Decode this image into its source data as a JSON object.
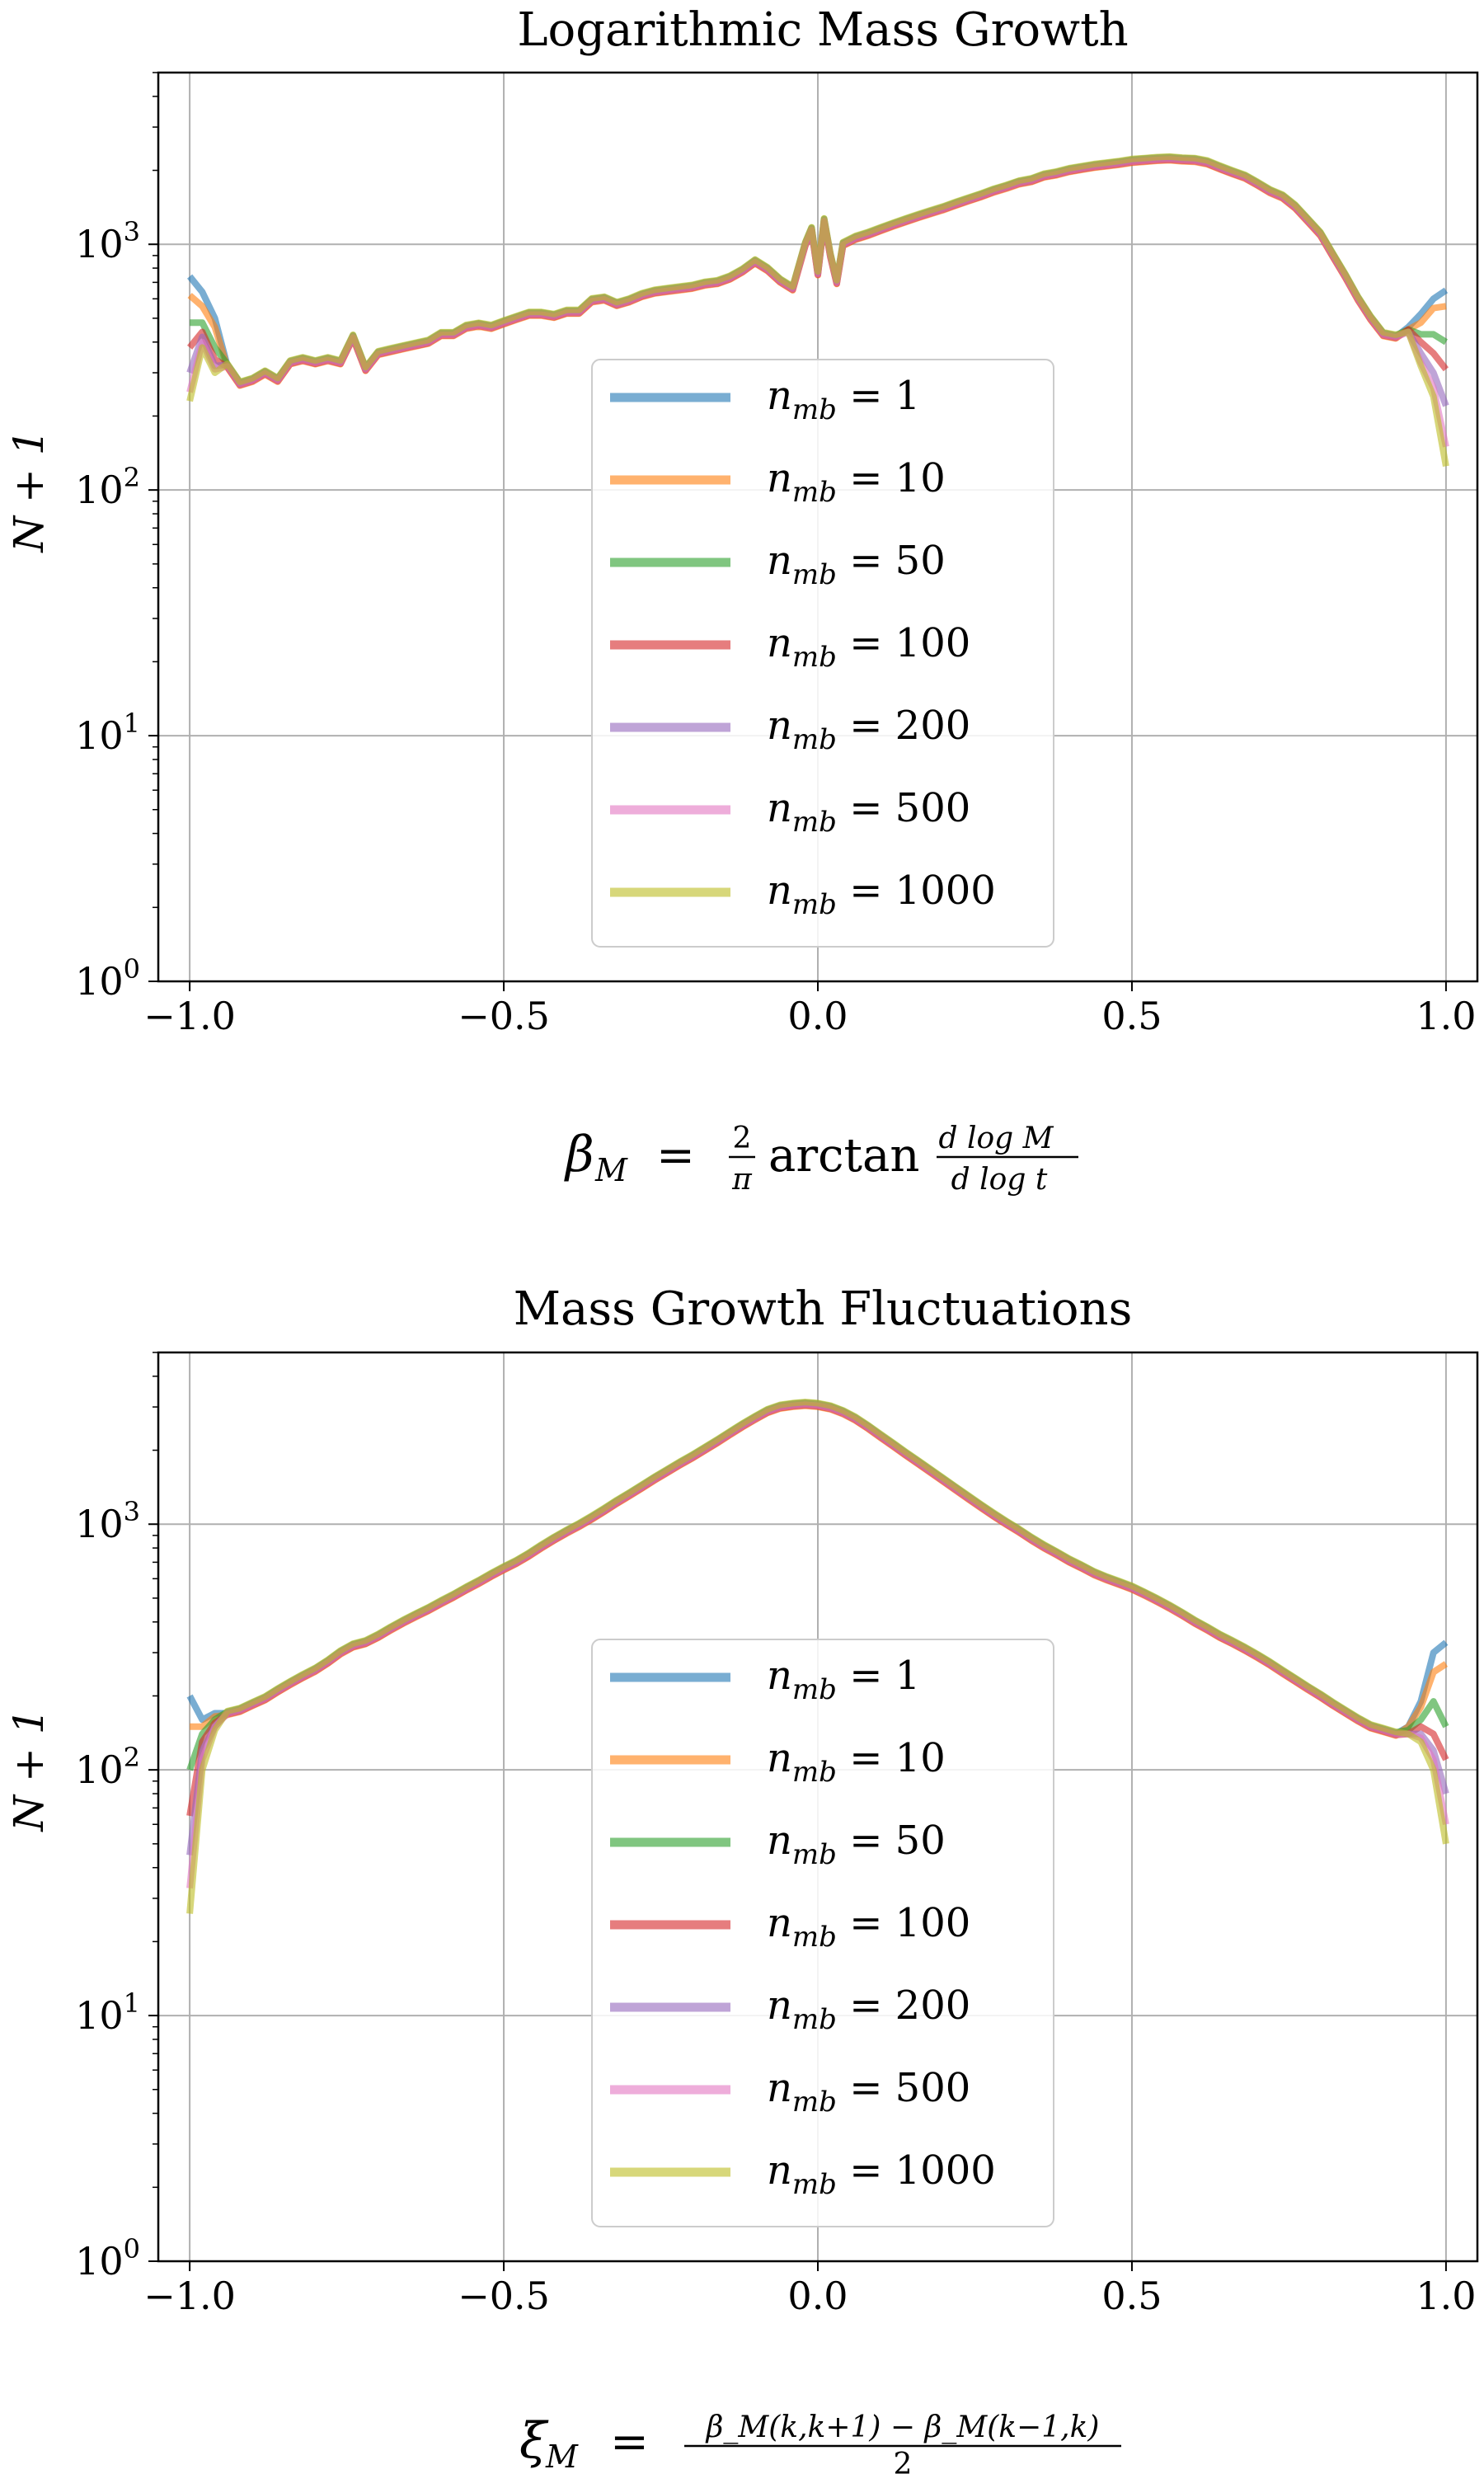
{
  "chart_data": [
    {
      "type": "line",
      "title": "Logarithmic Mass Growth",
      "ylabel": "N + 1",
      "xlabel_parts": {
        "lhs": "β",
        "sub": "M",
        "eq": "=",
        "frac_num": "2",
        "frac_den": "π",
        "fn": "arctan",
        "deriv_num": "d log M",
        "deriv_den": "d log t"
      },
      "y_scale": "log",
      "xlim": [
        -1.05,
        1.05
      ],
      "ylim": [
        1,
        5000
      ],
      "xticks": [
        "−1.0",
        "−0.5",
        "0.0",
        "0.5",
        "1.0"
      ],
      "xtick_values": [
        -1.0,
        -0.5,
        0.0,
        0.5,
        1.0
      ],
      "yticks": [
        {
          "base": "10",
          "exp": "0",
          "value": 1
        },
        {
          "base": "10",
          "exp": "1",
          "value": 10
        },
        {
          "base": "10",
          "exp": "2",
          "value": 100
        },
        {
          "base": "10",
          "exp": "3",
          "value": 1000
        }
      ],
      "grid": true,
      "legend_position": "center-bottom",
      "base_curve": {
        "x": [
          -1.0,
          -0.98,
          -0.96,
          -0.94,
          -0.92,
          -0.9,
          -0.88,
          -0.86,
          -0.84,
          -0.82,
          -0.8,
          -0.78,
          -0.76,
          -0.74,
          -0.72,
          -0.7,
          -0.68,
          -0.66,
          -0.64,
          -0.62,
          -0.6,
          -0.58,
          -0.56,
          -0.54,
          -0.52,
          -0.5,
          -0.48,
          -0.46,
          -0.44,
          -0.42,
          -0.4,
          -0.38,
          -0.36,
          -0.34,
          -0.32,
          -0.3,
          -0.28,
          -0.26,
          -0.24,
          -0.22,
          -0.2,
          -0.18,
          -0.16,
          -0.14,
          -0.12,
          -0.1,
          -0.08,
          -0.06,
          -0.04,
          -0.02,
          -0.01,
          0.0,
          0.01,
          0.02,
          0.03,
          0.04,
          0.06,
          0.08,
          0.1,
          0.12,
          0.14,
          0.16,
          0.18,
          0.2,
          0.22,
          0.24,
          0.26,
          0.28,
          0.3,
          0.32,
          0.34,
          0.36,
          0.38,
          0.4,
          0.42,
          0.44,
          0.46,
          0.48,
          0.5,
          0.52,
          0.54,
          0.56,
          0.58,
          0.6,
          0.62,
          0.64,
          0.66,
          0.68,
          0.7,
          0.72,
          0.74,
          0.76,
          0.78,
          0.8,
          0.82,
          0.84,
          0.86,
          0.88,
          0.9,
          0.92,
          0.94,
          0.96,
          0.98,
          1.0
        ],
        "y": [
          480,
          460,
          360,
          320,
          270,
          280,
          300,
          280,
          330,
          340,
          330,
          340,
          330,
          420,
          310,
          360,
          370,
          380,
          390,
          400,
          430,
          430,
          460,
          470,
          460,
          480,
          500,
          520,
          520,
          510,
          530,
          530,
          590,
          600,
          570,
          590,
          620,
          640,
          650,
          660,
          670,
          690,
          700,
          730,
          780,
          850,
          790,
          710,
          660,
          1000,
          1150,
          760,
          1250,
          900,
          700,
          1000,
          1060,
          1100,
          1150,
          1200,
          1250,
          1300,
          1350,
          1400,
          1460,
          1520,
          1580,
          1650,
          1710,
          1780,
          1820,
          1900,
          1940,
          2000,
          2040,
          2080,
          2110,
          2140,
          2180,
          2200,
          2220,
          2230,
          2210,
          2200,
          2150,
          2050,
          1960,
          1880,
          1760,
          1640,
          1560,
          1420,
          1250,
          1100,
          900,
          740,
          600,
          500,
          430,
          420,
          430,
          420,
          410,
          400
        ]
      },
      "series": [
        {
          "name": "n_mb = 1",
          "label_num": "1",
          "color": "#1f77b4",
          "left_end": [
            740,
            640,
            500
          ],
          "right_end": [
            460,
            520,
            600,
            650
          ]
        },
        {
          "name": "n_mb = 10",
          "label_num": "10",
          "color": "#ff7f0e",
          "left_end": [
            620,
            560,
            460
          ],
          "right_end": [
            450,
            480,
            550,
            560
          ]
        },
        {
          "name": "n_mb = 50",
          "label_num": "50",
          "color": "#2ca02c",
          "left_end": [
            480,
            480,
            380
          ],
          "right_end": [
            450,
            430,
            430,
            400
          ]
        },
        {
          "name": "n_mb = 100",
          "label_num": "100",
          "color": "#d62728",
          "left_end": [
            380,
            440,
            340
          ],
          "right_end": [
            450,
            400,
            360,
            310
          ]
        },
        {
          "name": "n_mb = 200",
          "label_num": "200",
          "color": "#9467bd",
          "left_end": [
            300,
            420,
            320
          ],
          "right_end": [
            440,
            360,
            300,
            220
          ]
        },
        {
          "name": "n_mb = 500",
          "label_num": "500",
          "color": "#e377c2",
          "left_end": [
            250,
            400,
            310
          ],
          "right_end": [
            440,
            330,
            260,
            150
          ]
        },
        {
          "name": "n_mb = 1000",
          "label_num": "1000",
          "color": "#bcbd22",
          "left_end": [
            230,
            380,
            300
          ],
          "right_end": [
            440,
            320,
            240,
            125
          ]
        }
      ]
    },
    {
      "type": "line",
      "title": "Mass Growth Fluctuations",
      "ylabel": "N + 1",
      "xlabel_parts": {
        "lhs": "ξ",
        "sub": "M",
        "eq": "=",
        "frac_num": "β_M(k,k+1) − β_M(k−1,k)",
        "frac_den": "2"
      },
      "y_scale": "log",
      "xlim": [
        -1.05,
        1.05
      ],
      "ylim": [
        1,
        5000
      ],
      "xticks": [
        "−1.0",
        "−0.5",
        "0.0",
        "0.5",
        "1.0"
      ],
      "xtick_values": [
        -1.0,
        -0.5,
        0.0,
        0.5,
        1.0
      ],
      "yticks": [
        {
          "base": "10",
          "exp": "0",
          "value": 1
        },
        {
          "base": "10",
          "exp": "1",
          "value": 10
        },
        {
          "base": "10",
          "exp": "2",
          "value": 100
        },
        {
          "base": "10",
          "exp": "3",
          "value": 1000
        }
      ],
      "grid": true,
      "legend_position": "center-bottom",
      "base_curve": {
        "x": [
          -1.0,
          -0.98,
          -0.96,
          -0.94,
          -0.92,
          -0.9,
          -0.88,
          -0.86,
          -0.84,
          -0.82,
          -0.8,
          -0.78,
          -0.76,
          -0.74,
          -0.72,
          -0.7,
          -0.68,
          -0.66,
          -0.64,
          -0.62,
          -0.6,
          -0.58,
          -0.56,
          -0.54,
          -0.52,
          -0.5,
          -0.48,
          -0.46,
          -0.44,
          -0.42,
          -0.4,
          -0.38,
          -0.36,
          -0.34,
          -0.32,
          -0.3,
          -0.28,
          -0.26,
          -0.24,
          -0.22,
          -0.2,
          -0.18,
          -0.16,
          -0.14,
          -0.12,
          -0.1,
          -0.08,
          -0.06,
          -0.04,
          -0.02,
          0.0,
          0.02,
          0.04,
          0.06,
          0.08,
          0.1,
          0.12,
          0.14,
          0.16,
          0.18,
          0.2,
          0.22,
          0.24,
          0.26,
          0.28,
          0.3,
          0.32,
          0.34,
          0.36,
          0.38,
          0.4,
          0.42,
          0.44,
          0.46,
          0.48,
          0.5,
          0.52,
          0.54,
          0.56,
          0.58,
          0.6,
          0.62,
          0.64,
          0.66,
          0.68,
          0.7,
          0.72,
          0.74,
          0.76,
          0.78,
          0.8,
          0.82,
          0.84,
          0.86,
          0.88,
          0.9,
          0.92,
          0.94,
          0.96,
          0.98,
          1.0
        ],
        "y": [
          110,
          140,
          160,
          170,
          175,
          185,
          195,
          210,
          225,
          240,
          255,
          275,
          300,
          320,
          330,
          350,
          375,
          400,
          425,
          450,
          480,
          510,
          545,
          580,
          620,
          660,
          700,
          750,
          810,
          870,
          930,
          990,
          1060,
          1140,
          1230,
          1320,
          1420,
          1530,
          1640,
          1760,
          1880,
          2020,
          2170,
          2340,
          2520,
          2700,
          2880,
          3000,
          3050,
          3080,
          3050,
          2980,
          2850,
          2680,
          2480,
          2280,
          2100,
          1930,
          1780,
          1640,
          1510,
          1390,
          1280,
          1180,
          1090,
          1010,
          940,
          870,
          810,
          760,
          710,
          670,
          630,
          600,
          575,
          550,
          520,
          490,
          460,
          430,
          400,
          375,
          350,
          330,
          310,
          290,
          270,
          250,
          232,
          215,
          200,
          185,
          172,
          160,
          150,
          145,
          140,
          140,
          142,
          145,
          148
        ]
      },
      "series": [
        {
          "name": "n_mb = 1",
          "label_num": "1",
          "color": "#1f77b4",
          "left_end": [
            200,
            160,
            170
          ],
          "right_end": [
            150,
            190,
            300,
            330
          ]
        },
        {
          "name": "n_mb = 10",
          "label_num": "10",
          "color": "#ff7f0e",
          "left_end": [
            150,
            150,
            165
          ],
          "right_end": [
            150,
            180,
            250,
            270
          ]
        },
        {
          "name": "n_mb = 50",
          "label_num": "50",
          "color": "#2ca02c",
          "left_end": [
            100,
            140,
            160
          ],
          "right_end": [
            145,
            160,
            190,
            150
          ]
        },
        {
          "name": "n_mb = 100",
          "label_num": "100",
          "color": "#d62728",
          "left_end": [
            65,
            130,
            155
          ],
          "right_end": [
            140,
            150,
            140,
            110
          ]
        },
        {
          "name": "n_mb = 200",
          "label_num": "200",
          "color": "#9467bd",
          "left_end": [
            45,
            120,
            150
          ],
          "right_end": [
            140,
            140,
            120,
            80
          ]
        },
        {
          "name": "n_mb = 500",
          "label_num": "500",
          "color": "#e377c2",
          "left_end": [
            33,
            110,
            150
          ],
          "right_end": [
            140,
            135,
            110,
            60
          ]
        },
        {
          "name": "n_mb = 1000",
          "label_num": "1000",
          "color": "#bcbd22",
          "left_end": [
            26,
            100,
            145
          ],
          "right_end": [
            140,
            130,
            100,
            50
          ]
        }
      ]
    }
  ]
}
